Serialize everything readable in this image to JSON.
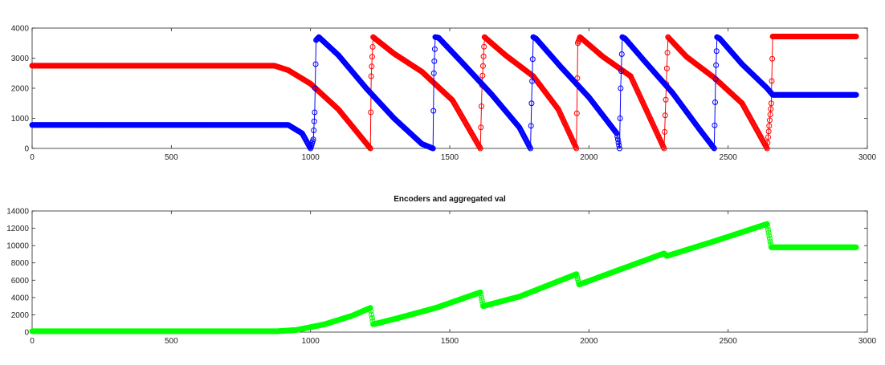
{
  "chart_data": [
    {
      "type": "line",
      "title": "",
      "xlabel": "",
      "ylabel": "",
      "xlim": [
        0,
        3000
      ],
      "ylim": [
        0,
        4000
      ],
      "x_ticks": [
        "0",
        "500",
        "1000",
        "1500",
        "2000",
        "2500",
        "3000"
      ],
      "y_ticks": [
        "0",
        "1000",
        "2000",
        "3000",
        "4000"
      ],
      "grid": false,
      "legend": "none",
      "series": [
        {
          "color": "#ff0000",
          "marker": "circle",
          "x": [
            0,
            870,
            920,
            1000,
            1100,
            1215,
            1218,
            1225,
            1300,
            1400,
            1510,
            1610,
            1616,
            1625,
            1700,
            1800,
            1890,
            1955,
            1960,
            1968,
            2050,
            2150,
            2270,
            2274,
            2284,
            2350,
            2450,
            2550,
            2640,
            2655,
            2660,
            2800,
            2960
          ],
          "y": [
            2750,
            2750,
            2600,
            2150,
            1300,
            0,
            2400,
            3700,
            3150,
            2550,
            1600,
            0,
            2100,
            3700,
            3100,
            2400,
            1300,
            0,
            3500,
            3700,
            3050,
            2400,
            0,
            1100,
            3700,
            3050,
            2350,
            1500,
            0,
            1500,
            3720,
            3720,
            3720
          ]
        },
        {
          "color": "#0000ff",
          "marker": "circle",
          "x": [
            0,
            880,
            920,
            970,
            1000,
            1010,
            1015,
            1020,
            1030,
            1100,
            1200,
            1300,
            1400,
            1440,
            1443,
            1448,
            1460,
            1550,
            1650,
            1750,
            1790,
            1794,
            1800,
            1810,
            1900,
            2000,
            2100,
            2110,
            2114,
            2120,
            2130,
            2200,
            2300,
            2400,
            2450,
            2455,
            2460,
            2470,
            2550,
            2640,
            2660,
            2800,
            2960
          ],
          "y": [
            780,
            780,
            780,
            500,
            0,
            300,
            1200,
            3600,
            3700,
            3100,
            2000,
            1000,
            150,
            0,
            2500,
            3700,
            3680,
            2800,
            1800,
            700,
            0,
            1500,
            3700,
            3650,
            2700,
            1700,
            500,
            0,
            2000,
            3700,
            3650,
            2900,
            1850,
            600,
            0,
            2300,
            3700,
            3650,
            2800,
            2000,
            1780,
            1780,
            1780
          ]
        }
      ]
    },
    {
      "type": "line",
      "title": "Encoders and aggregated val",
      "xlabel": "",
      "ylabel": "",
      "xlim": [
        0,
        3000
      ],
      "ylim": [
        0,
        14000
      ],
      "x_ticks": [
        "0",
        "500",
        "1000",
        "1500",
        "2000",
        "2500",
        "3000"
      ],
      "y_ticks": [
        "0",
        "2000",
        "4000",
        "6000",
        "8000",
        "10000",
        "12000",
        "14000"
      ],
      "grid": false,
      "legend": "none",
      "series": [
        {
          "color": "#00ff00",
          "marker": "circle",
          "x": [
            0,
            880,
            950,
            1050,
            1150,
            1215,
            1225,
            1300,
            1450,
            1610,
            1620,
            1750,
            1955,
            1965,
            2100,
            2270,
            2280,
            2450,
            2640,
            2655,
            2800,
            2960
          ],
          "y": [
            100,
            100,
            250,
            900,
            1900,
            2800,
            900,
            1500,
            2800,
            4600,
            3000,
            4100,
            6700,
            5500,
            7100,
            9100,
            8800,
            10500,
            12500,
            9800,
            9800,
            9800
          ]
        }
      ]
    }
  ]
}
